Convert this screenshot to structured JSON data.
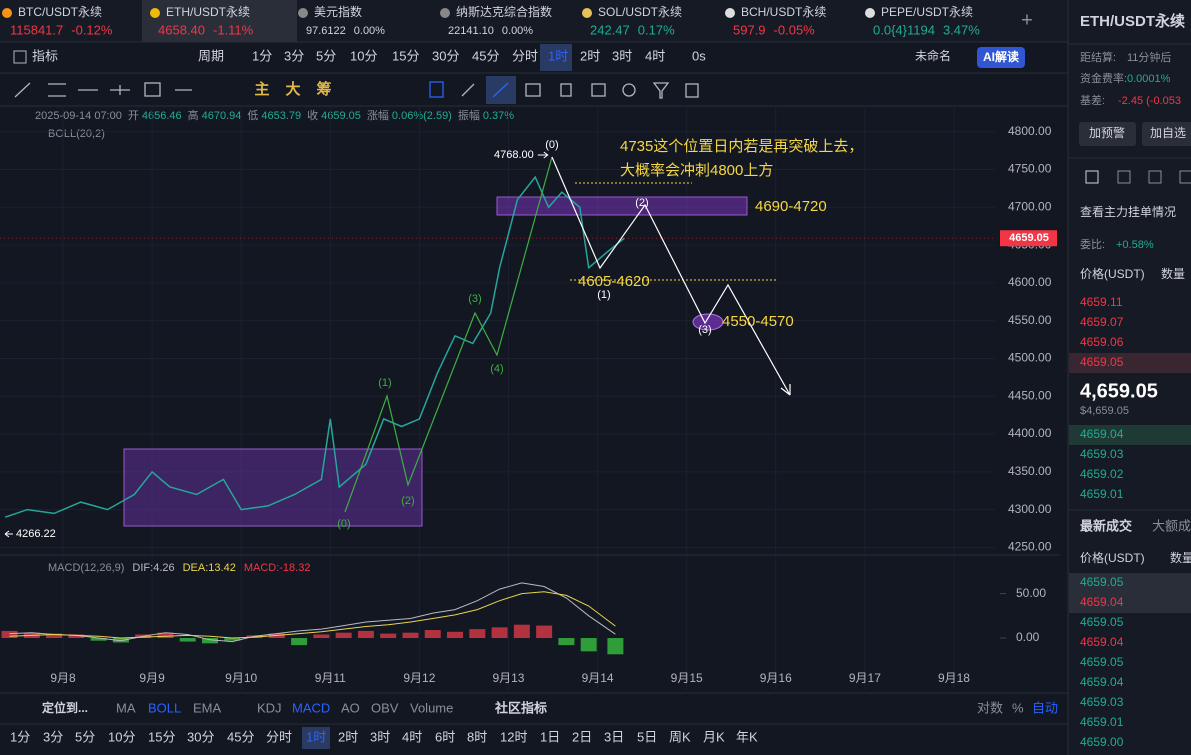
{
  "tabs": [
    {
      "name": "BTC/USDT永续",
      "price": "115841.7",
      "change": "-0.12%",
      "dir": "down"
    },
    {
      "name": "ETH/USDT永续",
      "price": "4658.40",
      "change": "-1.11%",
      "dir": "down"
    },
    {
      "name": "美元指数",
      "price": "97.6122",
      "change": "0.00%",
      "dir": "flat"
    },
    {
      "name": "纳斯达克综合指数",
      "price": "22141.10",
      "change": "0.00%",
      "dir": "flat"
    },
    {
      "name": "SOL/USDT永续",
      "price": "242.47",
      "change": "0.17%",
      "dir": "up"
    },
    {
      "name": "BCH/USDT永续",
      "price": "597.9",
      "change": "-0.05%",
      "dir": "down"
    },
    {
      "name": "PEPE/USDT永续",
      "price": "0.0{4}1194",
      "change": "3.47%",
      "dir": "up"
    }
  ],
  "active_tab": "ETH/USDT永续",
  "toolbar": {
    "indicator": "指标",
    "period": "周期",
    "intervals": [
      "1分",
      "3分",
      "5分",
      "10分",
      "15分",
      "30分",
      "45分",
      "分时",
      "1时",
      "2时",
      "3时",
      "4时"
    ],
    "active_interval": "1时",
    "delay": "0s",
    "layout_name": "未命名",
    "ai": "AI解读"
  },
  "chart_tools": [
    "主",
    "大",
    "筹"
  ],
  "info": {
    "time": "2025-09-14 07:00",
    "items": [
      {
        "label": "开",
        "value": "4656.46"
      },
      {
        "label": "高",
        "value": "4670.94"
      },
      {
        "label": "低",
        "value": "4653.79"
      },
      {
        "label": "收",
        "value": "4659.05"
      },
      {
        "label": "涨幅",
        "value": "0.06%(2.59)"
      },
      {
        "label": "振幅",
        "value": "0.37%"
      }
    ],
    "boll": "BOLL(20,2)"
  },
  "annotations": {
    "note_lines": [
      "4735这个位置日内若是再突破上去，",
      "大概率会冲刺4800上方"
    ],
    "zone_high": "4690-4720",
    "zone_mid": "4605-4620",
    "zone_low": "4550-4570",
    "high_label": "4768.00",
    "low_label": "4266.22",
    "waves_green": [
      "(0)",
      "(1)",
      "(2)",
      "(3)",
      "(4)"
    ],
    "waves_white": [
      "(0)",
      "(1)",
      "(2)",
      "(3)"
    ]
  },
  "chart_data": [
    {
      "type": "line",
      "color": "#26a69a",
      "x": [
        7.35,
        7.6,
        7.9,
        8.2,
        8.5,
        8.8,
        9.0,
        9.2,
        9.5,
        9.8,
        10.0,
        10.3,
        10.6,
        10.9,
        11.0,
        11.1,
        11.4,
        11.6,
        11.8,
        12.0,
        12.2,
        12.4,
        12.6,
        12.8,
        12.9,
        13.1,
        13.3,
        13.45,
        13.6,
        13.8,
        13.9,
        14.1,
        14.3
      ],
      "values": [
        4290,
        4300,
        4295,
        4310,
        4300,
        4320,
        4350,
        4330,
        4320,
        4340,
        4300,
        4305,
        4320,
        4340,
        4420,
        4330,
        4360,
        4420,
        4410,
        4420,
        4480,
        4530,
        4520,
        4560,
        4620,
        4710,
        4740,
        4700,
        4720,
        4700,
        4620,
        4640,
        4659.05
      ],
      "last_price": 4659.05,
      "xlim": [
        7.293,
        19.19
      ],
      "ylim": [
        4240,
        4834
      ],
      "xticks": [
        {
          "value": 8,
          "label": "9月8"
        },
        {
          "value": 9,
          "label": "9月9"
        },
        {
          "value": 10,
          "label": "9月10"
        },
        {
          "value": 11,
          "label": "9月11"
        },
        {
          "value": 12,
          "label": "9月12"
        },
        {
          "value": 13,
          "label": "9月13"
        },
        {
          "value": 14,
          "label": "9月14"
        },
        {
          "value": 15,
          "label": "9月15"
        },
        {
          "value": 16,
          "label": "9月16"
        },
        {
          "value": 17,
          "label": "9月17"
        },
        {
          "value": 18,
          "label": "9月18"
        }
      ],
      "yticks": [
        {
          "value": 4250,
          "label": "4250.00"
        },
        {
          "value": 4300,
          "label": "4300.00"
        },
        {
          "value": 4350,
          "label": "4350.00"
        },
        {
          "value": 4400,
          "label": "4400.00"
        },
        {
          "value": 4450,
          "label": "4450.00"
        },
        {
          "value": 4500,
          "label": "4500.00"
        },
        {
          "value": 4550,
          "label": "4550.00"
        },
        {
          "value": 4600,
          "label": "4600.00"
        },
        {
          "value": 4650,
          "label": "4650.00"
        },
        {
          "value": 4700,
          "label": "4700.00"
        },
        {
          "value": 4750,
          "label": "4750.00"
        },
        {
          "value": 4800,
          "label": "4800.00"
        }
      ],
      "grid": true
    },
    {
      "type": "bar",
      "title": "MACD(12,26,9)",
      "labels": [
        "DIF:4.26",
        "DEA:13.42",
        "MACD:-18.32"
      ],
      "up_color": "#b2323f",
      "down_color": "#2e9d3a",
      "dif_color": "#b8bac4",
      "dea_color": "#e8d44d",
      "x": [
        7.4,
        7.65,
        7.9,
        8.15,
        8.4,
        8.65,
        8.9,
        9.15,
        9.4,
        9.65,
        9.9,
        10.15,
        10.4,
        10.65,
        10.9,
        11.15,
        11.4,
        11.65,
        11.9,
        12.15,
        12.4,
        12.65,
        12.9,
        13.15,
        13.4,
        13.65,
        13.9,
        14.2
      ],
      "values": [
        8,
        6,
        5,
        4,
        -3,
        -5,
        4,
        6,
        -4,
        -6,
        -3,
        3,
        5,
        -8,
        4,
        6,
        8,
        5,
        6,
        9,
        7,
        10,
        12,
        15,
        14,
        -8,
        -15,
        -18.32
      ],
      "dif": [
        5,
        6,
        4,
        3,
        0,
        -3,
        2,
        6,
        4,
        -2,
        -4,
        2,
        5,
        8,
        10,
        14,
        18,
        20,
        22,
        28,
        32,
        42,
        55,
        62,
        58,
        45,
        25,
        4.26
      ],
      "dea": [
        2,
        3,
        4,
        3,
        2,
        0,
        1,
        2,
        3,
        2,
        0,
        1,
        3,
        5,
        7,
        10,
        13,
        15,
        18,
        22,
        26,
        32,
        42,
        50,
        52,
        48,
        36,
        13.42
      ],
      "xlim": [
        7.293,
        19.19
      ],
      "ylim": [
        -58.5,
        87.8
      ],
      "yticks": [
        {
          "value": 0,
          "label": "0.00"
        },
        {
          "value": 50,
          "label": "50.00"
        }
      ]
    }
  ],
  "bottom_indicators": {
    "locate": "定位到...",
    "main": [
      "MA",
      "BOLL",
      "EMA"
    ],
    "sub": [
      "KDJ",
      "MACD",
      "AO",
      "OBV",
      "Volume"
    ],
    "community": "社区指标",
    "active": [
      "BOLL",
      "MACD"
    ],
    "log": "对数",
    "percent": "%",
    "auto": "自动"
  },
  "bottom_intervals": [
    "1分",
    "3分",
    "5分",
    "10分",
    "15分",
    "30分",
    "45分",
    "分时",
    "1时",
    "2时",
    "3时",
    "4时",
    "6时",
    "8时",
    "12时",
    "1日",
    "2日",
    "3日",
    "5日",
    "周K",
    "月K",
    "年K"
  ],
  "side": {
    "title": "ETH/USDT永续",
    "settle_label": "距结算:",
    "settle": "11分钟后",
    "funding_label": "资金费率:",
    "funding": "0.0001%",
    "basis_label": "基差:",
    "basis": "-2.45 (-0.053",
    "btn_alert": "加预警",
    "btn_fav": "加自选",
    "depth_link": "查看主力挂单情况",
    "ratio_label": "委比:",
    "ratio": "+0.58%",
    "price_header": "价格(USDT)",
    "qty_header": "数量",
    "asks": [
      "4659.11",
      "4659.07",
      "4659.06",
      "4659.05"
    ],
    "last": "4,659.05",
    "last_usd": "$4,659.05",
    "bids": [
      "4659.04",
      "4659.03",
      "4659.02",
      "4659.01"
    ],
    "trades_tab": "最新成交",
    "big_tab": "大额成交",
    "trades": [
      {
        "price": "4659.05",
        "side": "buy"
      },
      {
        "price": "4659.04",
        "side": "sell"
      },
      {
        "price": "4659.05",
        "side": "buy"
      },
      {
        "price": "4659.04",
        "side": "sell"
      },
      {
        "price": "4659.05",
        "side": "buy"
      },
      {
        "price": "4659.04",
        "side": "buy"
      },
      {
        "price": "4659.03",
        "side": "buy"
      },
      {
        "price": "4659.01",
        "side": "buy"
      },
      {
        "price": "4659.00",
        "side": "buy"
      }
    ]
  }
}
